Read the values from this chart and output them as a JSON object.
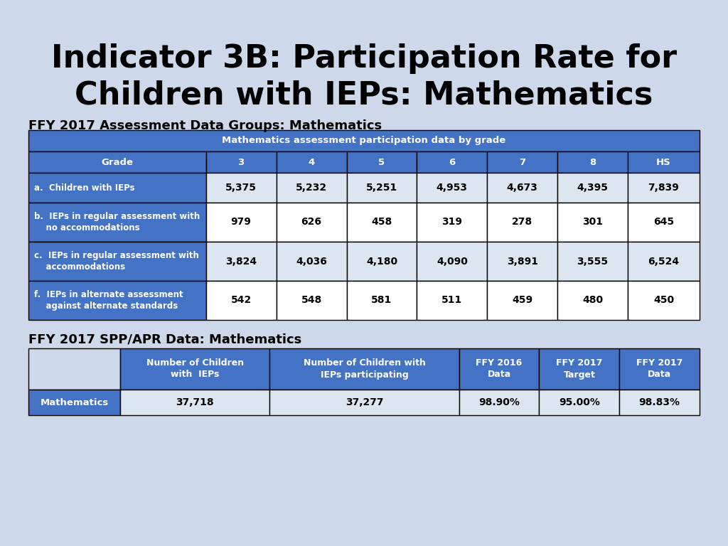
{
  "title_line1": "Indicator 3B: Participation Rate for",
  "title_line2": "Children with IEPs: Mathematics",
  "title_fontsize": 32,
  "background_color": "#cdd8ea",
  "subtitle1": "FFY 2017 Assessment Data Groups: Mathematics",
  "subtitle2": "FFY 2017 SPP/APR Data: Mathematics",
  "subtitle_fontsize": 13,
  "table1_header_top": "Mathematics assessment participation data by grade",
  "table1_blue": "#4472c4",
  "table1_white": "#ffffff",
  "table1_light": "#dce6f1",
  "table1_cols": [
    "Grade",
    "3",
    "4",
    "5",
    "6",
    "7",
    "8",
    "HS"
  ],
  "table1_rows": [
    [
      "a.  Children with IEPs",
      "5,375",
      "5,232",
      "5,251",
      "4,953",
      "4,673",
      "4,395",
      "7,839"
    ],
    [
      "b.  IEPs in regular assessment with\n    no accommodations",
      "979",
      "626",
      "458",
      "319",
      "278",
      "301",
      "645"
    ],
    [
      "c.  IEPs in regular assessment with\n    accommodations",
      "3,824",
      "4,036",
      "4,180",
      "4,090",
      "3,891",
      "3,555",
      "6,524"
    ],
    [
      "f.  IEPs in alternate assessment\n    against alternate standards",
      "542",
      "548",
      "581",
      "511",
      "459",
      "480",
      "450"
    ]
  ],
  "table2_cols": [
    "",
    "Number of Children\nwith  IEPs",
    "Number of Children with\nIEPs participating",
    "FFY 2016\nData",
    "FFY 2017\nTarget",
    "FFY 2017\nData"
  ],
  "table2_rows": [
    [
      "Mathematics",
      "37,718",
      "37,277",
      "98.90%",
      "95.00%",
      "98.83%"
    ]
  ],
  "table2_blue": "#4472c4",
  "table2_white": "#ffffff",
  "table2_light": "#dce6f1"
}
